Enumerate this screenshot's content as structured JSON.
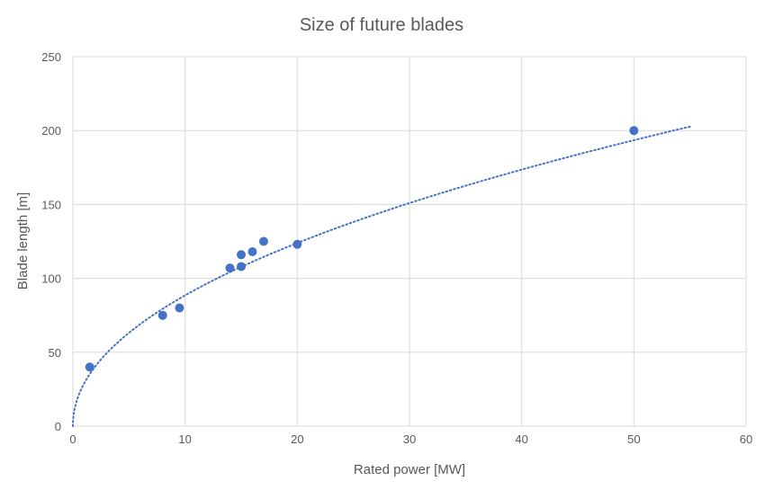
{
  "chart_data": {
    "type": "scatter",
    "title": "Size of future blades",
    "xlabel": "Rated power [MW]",
    "ylabel": "Blade length [m]",
    "xlim": [
      0,
      60
    ],
    "ylim": [
      0,
      250
    ],
    "xticks": [
      0,
      10,
      20,
      30,
      40,
      50,
      60
    ],
    "yticks": [
      0,
      50,
      100,
      150,
      200,
      250
    ],
    "grid": true,
    "legend": "none",
    "series": [
      {
        "color": "#4472c4",
        "points": [
          {
            "x": 1.5,
            "y": 40
          },
          {
            "x": 8,
            "y": 75
          },
          {
            "x": 9.5,
            "y": 80
          },
          {
            "x": 14,
            "y": 107
          },
          {
            "x": 15,
            "y": 108
          },
          {
            "x": 15,
            "y": 116
          },
          {
            "x": 16,
            "y": 118
          },
          {
            "x": 17,
            "y": 125
          },
          {
            "x": 20,
            "y": 123
          },
          {
            "x": 50,
            "y": 200
          }
        ]
      }
    ],
    "trendline": {
      "type": "power",
      "style": "dotted",
      "color": "#4472c4",
      "coefficient": 28.9,
      "exponent": 0.486,
      "x_range": [
        0,
        55
      ]
    }
  }
}
